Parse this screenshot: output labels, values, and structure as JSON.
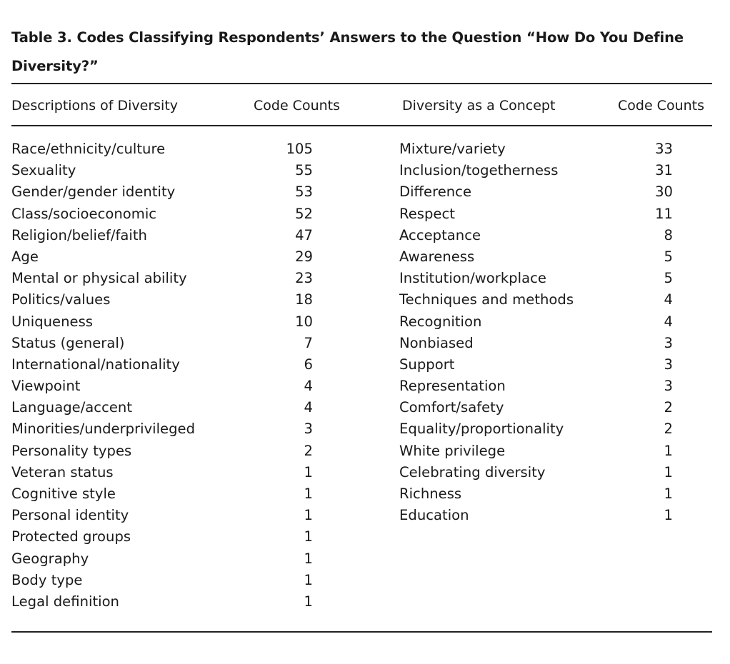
{
  "table": {
    "caption": "Table 3. Codes Classifying Respondents’ Answers to the Question “How Do You Define Diversity?”",
    "headers": [
      "Descriptions of Diversity",
      "Code Counts",
      "Diversity as a Concept",
      "Code Counts"
    ],
    "left_rows": [
      {
        "label": "Race/ethnicity/culture",
        "count": "105"
      },
      {
        "label": "Sexuality",
        "count": "55"
      },
      {
        "label": "Gender/gender identity",
        "count": "53"
      },
      {
        "label": "Class/socioeconomic",
        "count": "52"
      },
      {
        "label": "Religion/belief/faith",
        "count": "47"
      },
      {
        "label": "Age",
        "count": "29"
      },
      {
        "label": "Mental or physical ability",
        "count": "23"
      },
      {
        "label": "Politics/values",
        "count": "18"
      },
      {
        "label": "Uniqueness",
        "count": "10"
      },
      {
        "label": "Status (general)",
        "count": "7"
      },
      {
        "label": "International/nationality",
        "count": "6"
      },
      {
        "label": "Viewpoint",
        "count": "4"
      },
      {
        "label": "Language/accent",
        "count": "4"
      },
      {
        "label": "Minorities/underprivileged",
        "count": "3"
      },
      {
        "label": "Personality types",
        "count": "2"
      },
      {
        "label": "Veteran status",
        "count": "1"
      },
      {
        "label": "Cognitive style",
        "count": "1"
      },
      {
        "label": "Personal identity",
        "count": "1"
      },
      {
        "label": "Protected groups",
        "count": "1"
      },
      {
        "label": "Geography",
        "count": "1"
      },
      {
        "label": "Body type",
        "count": "1"
      },
      {
        "label": "Legal definition",
        "count": "1"
      }
    ],
    "right_rows": [
      {
        "label": "Mixture/variety",
        "count": "33"
      },
      {
        "label": "Inclusion/togetherness",
        "count": "31"
      },
      {
        "label": "Difference",
        "count": "30"
      },
      {
        "label": "Respect",
        "count": "11"
      },
      {
        "label": "Acceptance",
        "count": "8"
      },
      {
        "label": "Awareness",
        "count": "5"
      },
      {
        "label": "Institution/workplace",
        "count": "5"
      },
      {
        "label": "Techniques and methods",
        "count": "4"
      },
      {
        "label": "Recognition",
        "count": "4"
      },
      {
        "label": "Nonbiased",
        "count": "3"
      },
      {
        "label": "Support",
        "count": "3"
      },
      {
        "label": "Representation",
        "count": "3"
      },
      {
        "label": "Comfort/safety",
        "count": "2"
      },
      {
        "label": "Equality/proportionality",
        "count": "2"
      },
      {
        "label": "White privilege",
        "count": "1"
      },
      {
        "label": "Celebrating diversity",
        "count": "1"
      },
      {
        "label": "Richness",
        "count": "1"
      },
      {
        "label": "Education",
        "count": "1"
      }
    ]
  }
}
